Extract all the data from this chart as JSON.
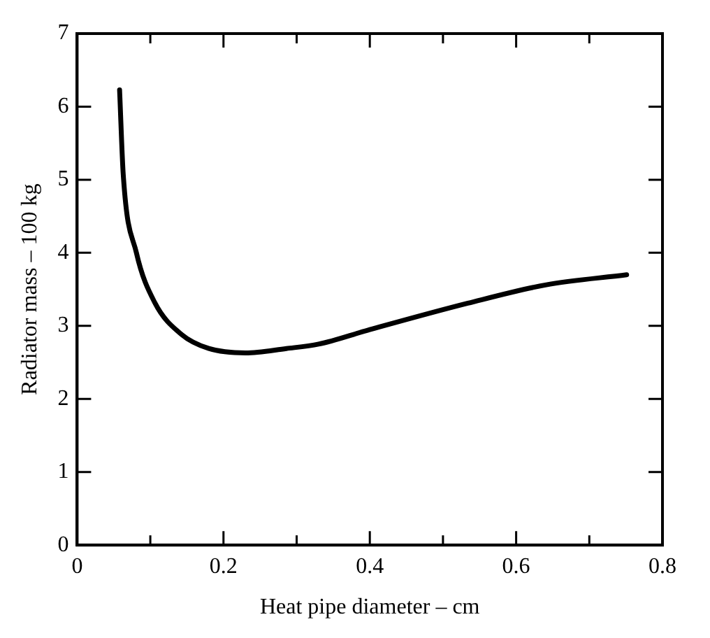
{
  "chart_data": {
    "type": "line",
    "xlabel": "Heat pipe diameter – cm",
    "ylabel": "Radiator mass – 100 kg",
    "x": [
      0.058,
      0.063,
      0.081,
      0.106,
      0.143,
      0.18,
      0.23,
      0.286,
      0.33,
      0.397,
      0.534,
      0.64,
      0.751
    ],
    "series": [
      {
        "color": "#000000",
        "values": [
          6.23,
          5.07,
          4.0,
          3.32,
          2.88,
          2.69,
          2.63,
          2.69,
          2.75,
          2.94,
          3.31,
          3.56,
          3.7
        ]
      }
    ],
    "xlim": [
      0,
      0.8
    ],
    "xticks": [
      0,
      {
        "value": 0.1,
        "label": null
      },
      {
        "value": 0.2,
        "label": "0.2"
      },
      {
        "value": 0.3,
        "label": null
      },
      {
        "value": 0.4,
        "label": "0.4"
      },
      {
        "value": 0.5,
        "label": null
      },
      {
        "value": 0.6,
        "label": "0.6"
      },
      {
        "value": 0.7,
        "label": null
      },
      {
        "value": 0.8,
        "label": "0.8"
      }
    ],
    "ylim": [
      0,
      7
    ],
    "yticks": [
      0,
      1,
      2,
      3,
      4,
      5,
      6,
      7
    ],
    "grid": false,
    "legend": false,
    "marker": "none",
    "line_style": "solid"
  }
}
